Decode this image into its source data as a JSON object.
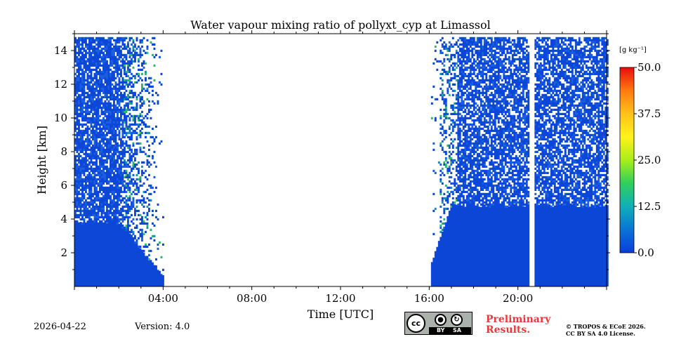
{
  "chart_data": {
    "type": "heatmap",
    "title": "Water vapour mixing ratio of pollyxt_cyp at Limassol",
    "xlabel": "Time [UTC]",
    "ylabel": "Height [km]",
    "xlim": [
      0,
      24
    ],
    "ylim": [
      0,
      15
    ],
    "x_ticks": [
      {
        "value": 4,
        "label": "04:00"
      },
      {
        "value": 8,
        "label": "08:00"
      },
      {
        "value": 12,
        "label": "12:00"
      },
      {
        "value": 16,
        "label": "16:00"
      },
      {
        "value": 20,
        "label": "20:00"
      }
    ],
    "y_ticks": [
      {
        "value": 2,
        "label": "2"
      },
      {
        "value": 4,
        "label": "4"
      },
      {
        "value": 6,
        "label": "6"
      },
      {
        "value": 8,
        "label": "8"
      },
      {
        "value": 10,
        "label": "10"
      },
      {
        "value": 12,
        "label": "12"
      },
      {
        "value": 14,
        "label": "14"
      }
    ],
    "colorbar": {
      "unit": "[g kg⁻¹]",
      "range": [
        0,
        50
      ],
      "ticks": [
        {
          "value": 0,
          "label": "0.0"
        },
        {
          "value": 12.5,
          "label": "12.5"
        },
        {
          "value": 25,
          "label": "25.0"
        },
        {
          "value": 37.5,
          "label": "37.5"
        },
        {
          "value": 50,
          "label": "50.0"
        }
      ],
      "colors": [
        "#0a3ddb",
        "#0a74d6",
        "#0fb0b8",
        "#2fcf5c",
        "#a8ee1a",
        "#fff21a",
        "#ffc21a",
        "#ff7a10",
        "#e80c0c"
      ]
    },
    "data_segments": [
      {
        "start_hour": 0.0,
        "end_hour": 4.0,
        "boundary_layer_km": 3.8,
        "sparse_top_km": 14.8
      },
      {
        "start_hour": 16.0,
        "end_hour": 24.0,
        "boundary_layer_km": 4.8,
        "sparse_top_km": 14.8
      }
    ],
    "no_data_gaps": [
      {
        "start_hour": 4.0,
        "end_hour": 16.0
      },
      {
        "start_hour": 20.5,
        "end_hour": 20.7
      }
    ],
    "typical_value": 3.0
  },
  "footer": {
    "date": "2026-04-22",
    "version": "Version: 4.0",
    "license_badge": {
      "cc": "cc",
      "by": "BY",
      "sa": "SA"
    },
    "preliminary_line1": "Preliminary",
    "preliminary_line2": "Results.",
    "copyright_line1": "© TROPOS & ECoE 2026.",
    "copyright_line2": "CC BY SA 4.0 License."
  }
}
